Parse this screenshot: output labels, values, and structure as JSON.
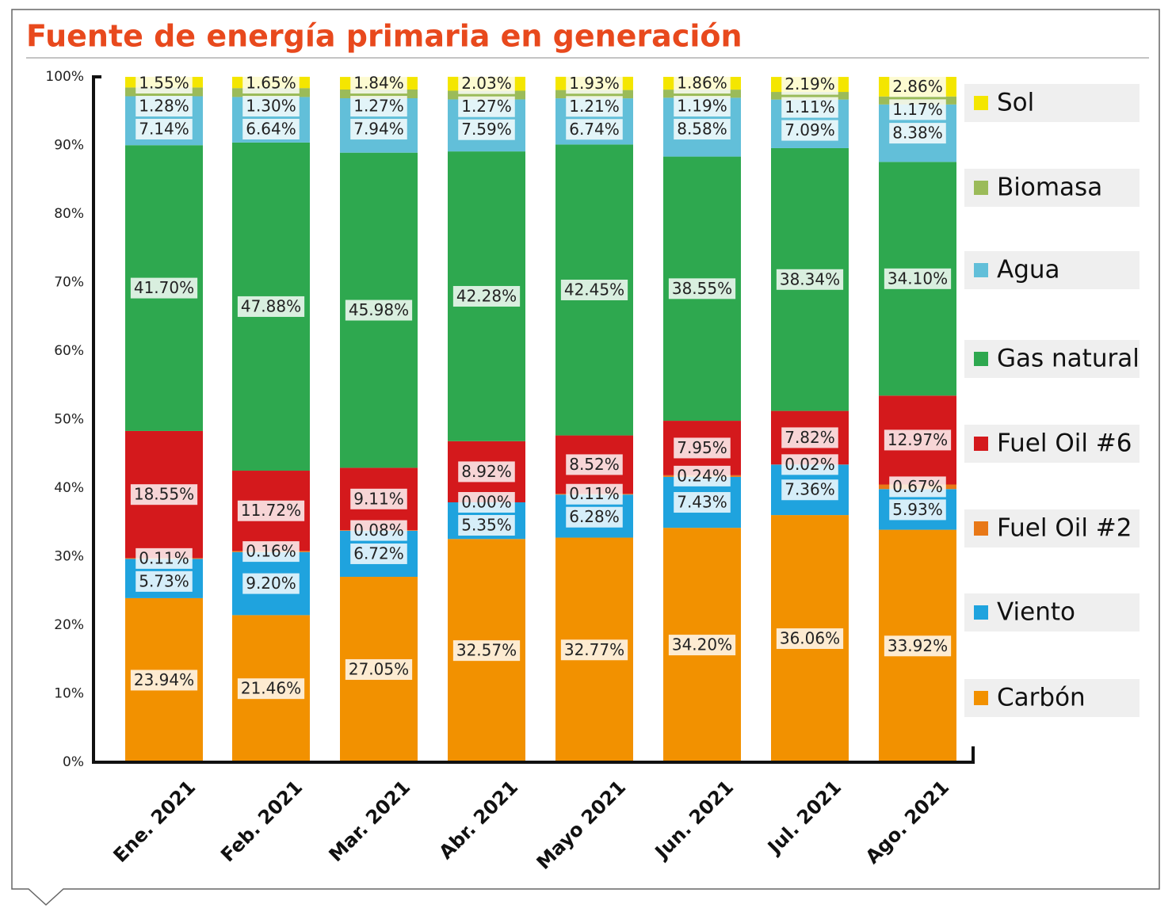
{
  "chart_data": {
    "type": "stacked_bar",
    "title": "Fuente de energía primaria en generación",
    "categories": [
      "Ene. 2021",
      "Feb. 2021",
      "Mar. 2021",
      "Abr. 2021",
      "Mayo 2021",
      "Jun. 2021",
      "Jul. 2021",
      "Ago. 2021"
    ],
    "series": [
      {
        "name": "Carbón",
        "color": "#f29100",
        "values": [
          23.94,
          21.46,
          27.05,
          32.57,
          32.77,
          34.2,
          36.06,
          33.92
        ],
        "value_labels": [
          "23.94%",
          "21.46%",
          "27.05%",
          "32.57%",
          "32.77%",
          "34.20%",
          "36.06%",
          "33.92%"
        ]
      },
      {
        "name": "Viento",
        "color": "#1fa3de",
        "values": [
          5.73,
          9.2,
          6.72,
          5.35,
          6.28,
          7.43,
          7.36,
          5.93
        ],
        "value_labels": [
          "5.73%",
          "9.20%",
          "6.72%",
          "5.35%",
          "6.28%",
          "7.43%",
          "7.36%",
          "5.93%"
        ]
      },
      {
        "name": "Fuel Oil #2",
        "color": "#e87817",
        "values": [
          0.11,
          0.16,
          0.08,
          0.0,
          0.11,
          0.24,
          0.02,
          0.67
        ],
        "value_labels": [
          "0.11%",
          "0.16%",
          "0.08%",
          "0.00%",
          "0.11%",
          "0.24%",
          "0.02%",
          "0.67%"
        ]
      },
      {
        "name": "Fuel Oil #6",
        "color": "#d4191c",
        "values": [
          18.55,
          11.72,
          9.11,
          8.92,
          8.52,
          7.95,
          7.82,
          12.97
        ],
        "value_labels": [
          "18.55%",
          "11.72%",
          "9.11%",
          "8.92%",
          "8.52%",
          "7.95%",
          "7.82%",
          "12.97%"
        ]
      },
      {
        "name": "Gas natural",
        "color": "#2ea84f",
        "values": [
          41.7,
          47.88,
          45.98,
          42.28,
          42.45,
          38.55,
          38.34,
          34.1
        ],
        "value_labels": [
          "41.70%",
          "47.88%",
          "45.98%",
          "42.28%",
          "42.45%",
          "38.55%",
          "38.34%",
          "34.10%"
        ]
      },
      {
        "name": "Agua",
        "color": "#62bfd9",
        "values": [
          7.14,
          6.64,
          7.94,
          7.59,
          6.74,
          8.58,
          7.09,
          8.38
        ],
        "value_labels": [
          "7.14%",
          "6.64%",
          "7.94%",
          "7.59%",
          "6.74%",
          "8.58%",
          "7.09%",
          "8.38%"
        ]
      },
      {
        "name": "Biomasa",
        "color": "#9bbb59",
        "values": [
          1.28,
          1.3,
          1.27,
          1.27,
          1.21,
          1.19,
          1.11,
          1.17
        ],
        "value_labels": [
          "1.28%",
          "1.30%",
          "1.27%",
          "1.27%",
          "1.21%",
          "1.19%",
          "1.11%",
          "1.17%"
        ]
      },
      {
        "name": "Sol",
        "color": "#f4e600",
        "values": [
          1.55,
          1.65,
          1.84,
          2.03,
          1.93,
          1.86,
          2.19,
          2.86
        ],
        "value_labels": [
          "1.55%",
          "1.65%",
          "1.84%",
          "2.03%",
          "1.93%",
          "1.86%",
          "2.19%",
          "2.86%"
        ]
      }
    ],
    "ylim": [
      0,
      100
    ],
    "yticks": [
      {
        "value": 0,
        "label": "0%"
      },
      {
        "value": 10,
        "label": "10%"
      },
      {
        "value": 20,
        "label": "20%"
      },
      {
        "value": 30,
        "label": "30%"
      },
      {
        "value": 40,
        "label": "40%"
      },
      {
        "value": 50,
        "label": "50%"
      },
      {
        "value": 60,
        "label": "60%"
      },
      {
        "value": 70,
        "label": "70%"
      },
      {
        "value": 80,
        "label": "80%"
      },
      {
        "value": 90,
        "label": "90%"
      },
      {
        "value": 100,
        "label": "100%"
      }
    ],
    "grid": false,
    "legend": "right"
  }
}
